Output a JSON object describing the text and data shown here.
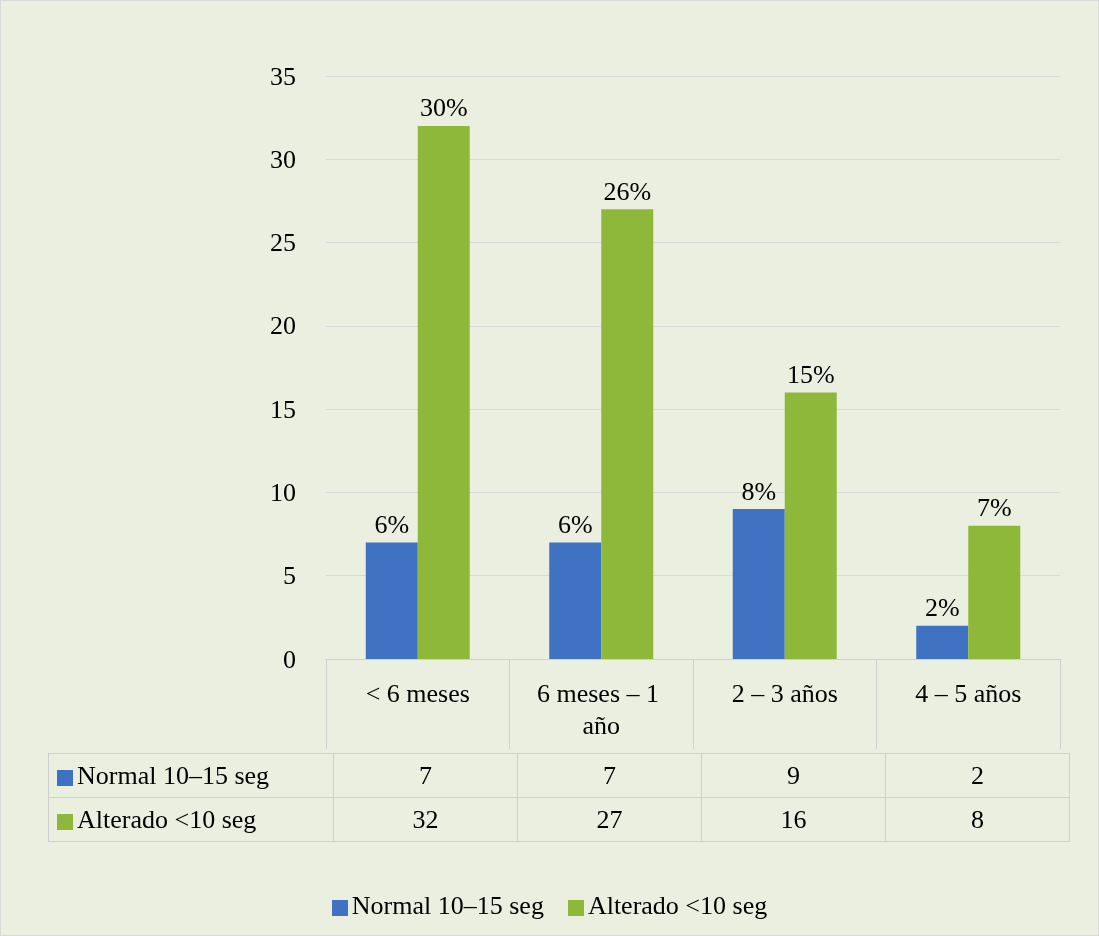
{
  "chart_data": {
    "type": "bar",
    "categories": [
      "< 6 meses",
      "6 meses – 1 año",
      "2 – 3 años",
      "4 – 5 años"
    ],
    "series": [
      {
        "name": "Normal 10–15 seg",
        "color": "#3f72c2",
        "values": [
          7,
          7,
          9,
          2
        ]
      },
      {
        "name": "Alterado <10 seg",
        "color": "#8db83a",
        "values": [
          32,
          27,
          16,
          8
        ]
      }
    ],
    "annotations": [
      {
        "text": "6%",
        "x": "< 6 meses",
        "y": 7
      },
      {
        "text": "6%",
        "x": "6 meses – 1 año",
        "y": 7
      },
      {
        "text": "8%",
        "x": "2 – 3 años",
        "y": 9
      },
      {
        "text": "2%",
        "x": "4 – 5 años",
        "y": 2
      },
      {
        "text": "30%",
        "x": "< 6 meses",
        "y": 32
      },
      {
        "text": "26%",
        "x": "6 meses – 1 año",
        "y": 27
      },
      {
        "text": "15%",
        "x": "2 – 3 años",
        "y": 16
      },
      {
        "text": "7%",
        "x": "4 – 5 años",
        "y": 8
      }
    ],
    "ylim": [
      0,
      35
    ],
    "yticks": [
      0,
      5,
      10,
      15,
      20,
      25,
      30,
      35
    ],
    "grid": "y",
    "legend": "bottom",
    "data_labels": true
  }
}
